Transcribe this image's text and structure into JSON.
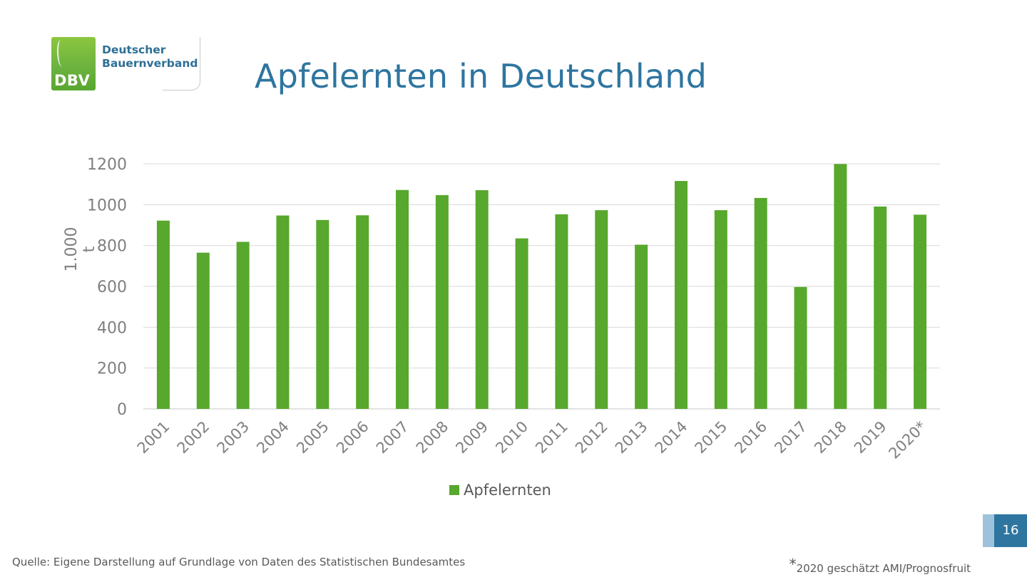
{
  "header": {
    "logo": {
      "abbr": "DBV",
      "name_line1": "Deutscher",
      "name_line2": "Bauernverband"
    },
    "title": "Apfelernten in Deutschland"
  },
  "colors": {
    "bar": "#57a82c",
    "title": "#2e75a0",
    "grid": "#d9d9d9",
    "text": "#595959"
  },
  "chart_data": {
    "type": "bar",
    "title": "",
    "xlabel": "",
    "ylabel": "1.000 t",
    "ylim": [
      0,
      1200
    ],
    "yticks": [
      0,
      200,
      400,
      600,
      800,
      1000,
      1200
    ],
    "grid": true,
    "legend_position": "bottom",
    "categories": [
      "2001",
      "2002",
      "2003",
      "2004",
      "2005",
      "2006",
      "2007",
      "2008",
      "2009",
      "2010",
      "2011",
      "2012",
      "2013",
      "2014",
      "2015",
      "2016",
      "2017",
      "2018",
      "2019",
      "2020*"
    ],
    "series": [
      {
        "name": "Apfelernten",
        "values": [
          922,
          765,
          818,
          947,
          925,
          948,
          1072,
          1047,
          1071,
          835,
          953,
          973,
          804,
          1116,
          973,
          1033,
          597,
          1199,
          991,
          951
        ]
      }
    ]
  },
  "footer": {
    "source": "Quelle: Eigene Darstellung auf Grundlage von Daten des Statistischen Bundesamtes",
    "footnote_star": "*",
    "footnote_text": "2020 geschätzt AMI/Prognosfruit",
    "page_number": "16"
  }
}
